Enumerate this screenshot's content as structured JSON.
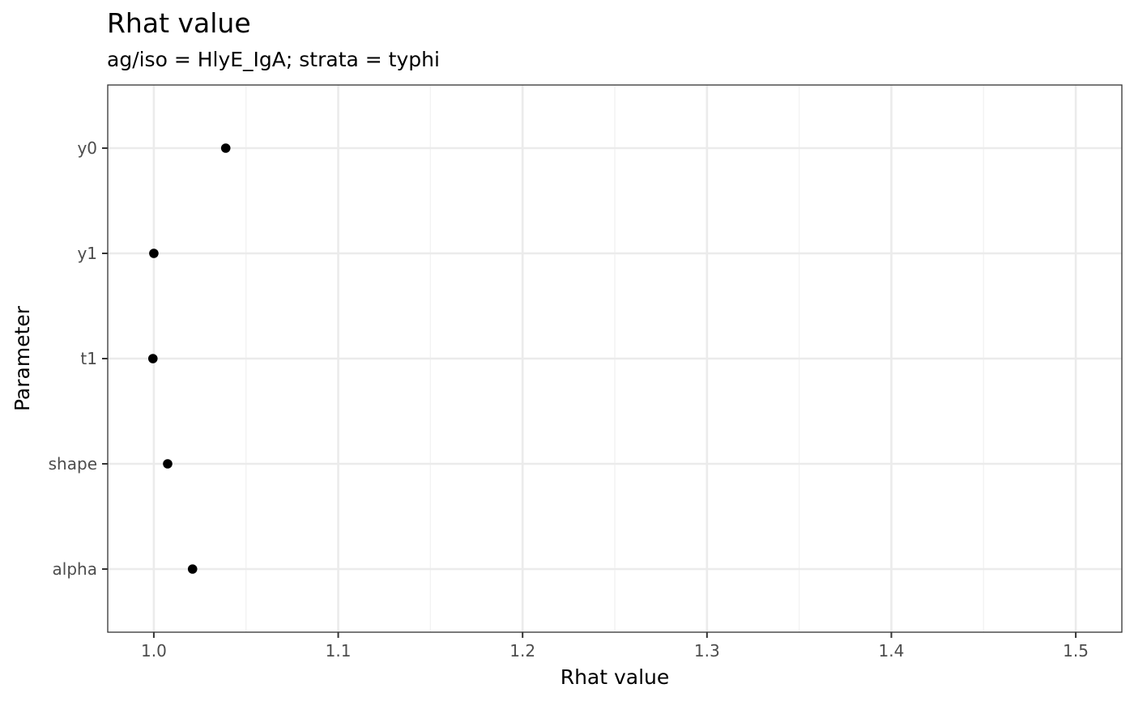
{
  "chart_data": {
    "type": "scatter",
    "title": "Rhat value",
    "subtitle": "ag/iso = HlyE_IgA; strata =  typhi",
    "xlabel": "Rhat value",
    "ylabel": "Parameter",
    "categories": [
      "y0",
      "y1",
      "t1",
      "shape",
      "alpha"
    ],
    "x_ticks": [
      1.0,
      1.1,
      1.2,
      1.3,
      1.4,
      1.5
    ],
    "x_tick_labels": [
      "1.0",
      "1.1",
      "1.2",
      "1.3",
      "1.4",
      "1.5"
    ],
    "xlim": [
      0.975,
      1.525
    ],
    "grid": true,
    "points": [
      {
        "parameter": "y0",
        "value": 1.039
      },
      {
        "parameter": "y1",
        "value": 1.0
      },
      {
        "parameter": "t1",
        "value": 0.9995
      },
      {
        "parameter": "shape",
        "value": 1.0075
      },
      {
        "parameter": "alpha",
        "value": 1.021
      }
    ]
  }
}
